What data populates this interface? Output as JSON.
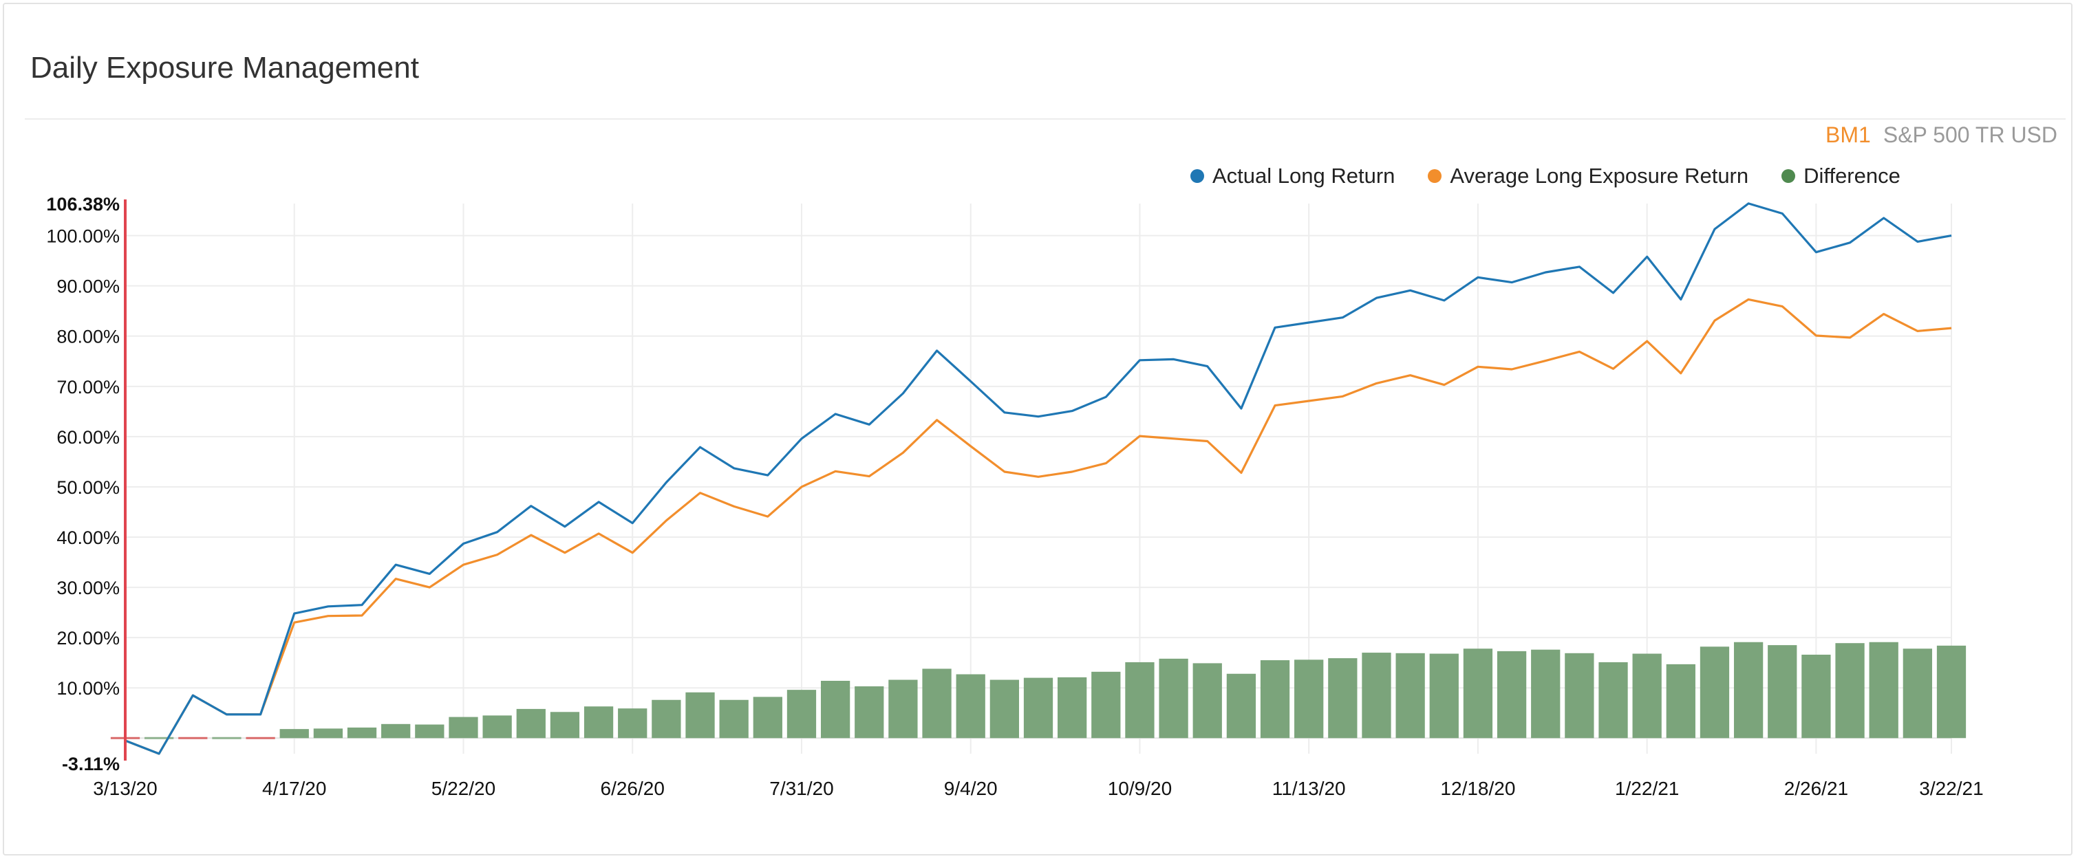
{
  "header": {
    "title": "Daily Exposure Management"
  },
  "benchmark": {
    "code": "BM1",
    "name": "S&P 500 TR USD"
  },
  "colors": {
    "actual": "#1f77b4",
    "average": "#f28e2c",
    "difference": "#7ba47b",
    "axis_marker": "#e0454f"
  },
  "chart_data": {
    "type": "line+bar",
    "title": "Daily Exposure Management",
    "legend_position": "top-right",
    "legend": [
      "Actual Long Return",
      "Average Long Exposure Return",
      "Difference"
    ],
    "y_axis": {
      "min": -3.11,
      "max": 106.38,
      "max_label": "106.38%",
      "min_label": "-3.11%",
      "ticks": [
        10,
        20,
        30,
        40,
        50,
        60,
        70,
        80,
        90,
        100
      ],
      "tick_labels": [
        "10.00%",
        "20.00%",
        "30.00%",
        "40.00%",
        "50.00%",
        "60.00%",
        "70.00%",
        "80.00%",
        "90.00%",
        "100.00%"
      ],
      "grid": true
    },
    "x_axis": {
      "tick_labels": [
        "3/13/20",
        "4/17/20",
        "5/22/20",
        "6/26/20",
        "7/31/20",
        "9/4/20",
        "10/9/20",
        "11/13/20",
        "12/18/20",
        "1/22/21",
        "2/26/21",
        "3/22/21"
      ],
      "tick_index": [
        0,
        5,
        10,
        15,
        20,
        25,
        30,
        35,
        40,
        45,
        50,
        54.6
      ],
      "grid": true
    },
    "series": [
      {
        "name": "Actual Long Return",
        "type": "line",
        "values": [
          -0.5,
          -3.11,
          8.5,
          4.7,
          4.7,
          24.8,
          26.2,
          26.5,
          34.5,
          32.7,
          38.7,
          41.0,
          46.2,
          42.1,
          47.0,
          42.8,
          50.9,
          57.9,
          53.7,
          52.3,
          59.6,
          64.5,
          62.4,
          68.6,
          77.1,
          71.0,
          64.8,
          64.0,
          65.1,
          67.9,
          75.2,
          75.4,
          74.0,
          65.6,
          81.7,
          82.7,
          83.7,
          87.6,
          89.1,
          87.1,
          91.7,
          90.7,
          92.7,
          93.8,
          88.6,
          95.8,
          87.3,
          101.3,
          106.4,
          104.4,
          96.7,
          98.6,
          103.5,
          98.8,
          100.0
        ]
      },
      {
        "name": "Average Long Exposure Return",
        "type": "line",
        "values": [
          -0.5,
          -3.11,
          8.5,
          4.7,
          4.7,
          23.0,
          24.3,
          24.4,
          31.7,
          30.0,
          34.5,
          36.5,
          40.4,
          36.9,
          40.7,
          36.9,
          43.3,
          48.8,
          46.1,
          44.1,
          50.0,
          53.1,
          52.1,
          56.8,
          63.3,
          58.1,
          53.0,
          52.0,
          53.0,
          54.7,
          60.1,
          59.6,
          59.1,
          52.8,
          66.2,
          67.1,
          68.0,
          70.6,
          72.2,
          70.3,
          73.9,
          73.4,
          75.1,
          76.9,
          73.5,
          79.0,
          72.6,
          83.1,
          87.3,
          85.9,
          80.1,
          79.7,
          84.4,
          81.0,
          81.6
        ]
      },
      {
        "name": "Difference",
        "type": "bar",
        "values": [
          0.0,
          0.0,
          0.0,
          0.0,
          0.0,
          1.8,
          1.9,
          2.1,
          2.8,
          2.7,
          4.2,
          4.5,
          5.8,
          5.2,
          6.3,
          5.9,
          7.6,
          9.1,
          7.6,
          8.2,
          9.6,
          11.4,
          10.3,
          11.6,
          13.8,
          12.7,
          11.6,
          12.0,
          12.1,
          13.2,
          15.1,
          15.8,
          14.9,
          12.8,
          15.5,
          15.6,
          15.9,
          17.0,
          16.9,
          16.8,
          17.8,
          17.3,
          17.6,
          16.9,
          15.1,
          16.8,
          14.7,
          18.2,
          19.1,
          18.5,
          16.6,
          18.9,
          19.1,
          17.8,
          18.4
        ]
      }
    ]
  }
}
